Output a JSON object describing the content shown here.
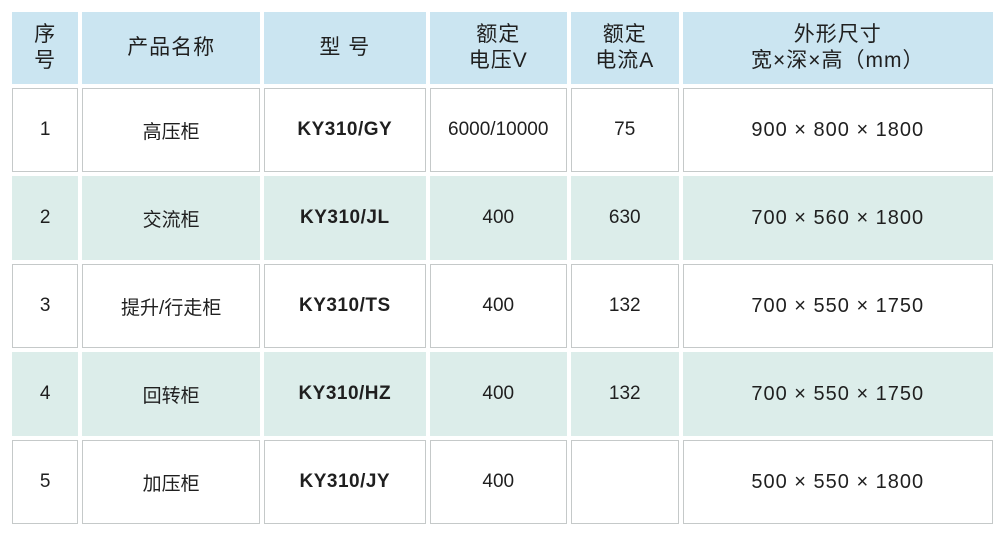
{
  "colors": {
    "header_bg": "#cbe5f1",
    "row_alt_bg": "#dcedea",
    "row_bg": "#ffffff",
    "cell_border": "#c5c9c9",
    "text": "#1f1f1f"
  },
  "table": {
    "headers": {
      "index": "序\n号",
      "name": "产品名称",
      "model": "型 号",
      "voltage": "额定\n电压V",
      "current": "额定\n电流A",
      "dimensions": "外形尺寸\n宽×深×高（mm）"
    },
    "rows": [
      [
        "1",
        "高压柜",
        "KY310/GY",
        "6000/10000",
        "75",
        "900 × 800 × 1800"
      ],
      [
        "2",
        "交流柜",
        "KY310/JL",
        "400",
        "630",
        "700 × 560 × 1800"
      ],
      [
        "3",
        "提升/行走柜",
        "KY310/TS",
        "400",
        "132",
        "700 × 550 × 1750"
      ],
      [
        "4",
        "回转柜",
        "KY310/HZ",
        "400",
        "132",
        "700 × 550 × 1750"
      ],
      [
        "5",
        "加压柜",
        "KY310/JY",
        "400",
        "",
        "500 × 550 × 1800"
      ]
    ]
  }
}
